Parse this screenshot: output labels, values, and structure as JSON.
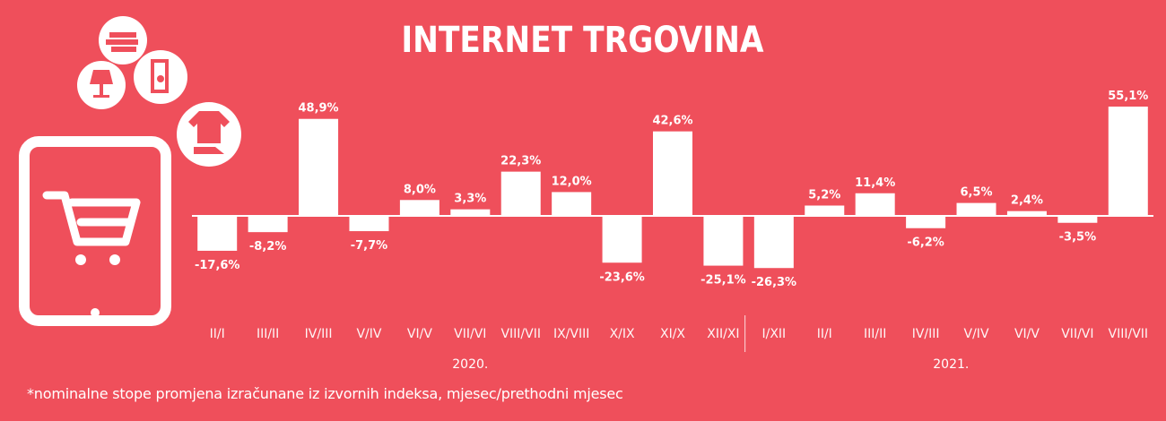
{
  "title": "INTERNET TRGOVINA",
  "footnote": "*nominalne stope promjena izračunane iz izvornih indeksa, mjesec/prethodni mjesec",
  "colors": {
    "background": "#ef4f5b",
    "bars": "#ffffff",
    "text": "#ffffff"
  },
  "icons": [
    "tablet-icon",
    "shopping-cart-icon",
    "books-icon",
    "lamp-icon",
    "fridge-icon",
    "clothing-icon"
  ],
  "chart_data": {
    "type": "bar",
    "title": "INTERNET TRGOVINA",
    "categories": [
      "II/I",
      "III/II",
      "IV/III",
      "V/IV",
      "VI/V",
      "VII/VI",
      "VIII/VII",
      "IX/VIII",
      "X/IX",
      "XI/X",
      "XII/XI",
      "I/XII",
      "II/I",
      "III/II",
      "IV/III",
      "V/IV",
      "VI/V",
      "VII/VI",
      "VIII/VII"
    ],
    "values": [
      -17.6,
      -8.2,
      48.9,
      -7.7,
      8.0,
      3.3,
      22.3,
      12.0,
      -23.6,
      42.6,
      -25.1,
      -26.3,
      5.2,
      11.4,
      -6.2,
      6.5,
      2.4,
      -3.5,
      55.1
    ],
    "value_labels": [
      "-17,6%",
      "-8,2%",
      "48,9%",
      "-7,7%",
      "8,0%",
      "3,3%",
      "22,3%",
      "12,0%",
      "-23,6%",
      "42,6%",
      "-25,1%",
      "-26,3%",
      "5,2%",
      "11,4%",
      "-6,2%",
      "6,5%",
      "2,4%",
      "-3,5%",
      "55,1%"
    ],
    "year_groups": [
      {
        "label": "2020.",
        "start": 0,
        "end": 10
      },
      {
        "label": "2021.",
        "start": 11,
        "end": 18
      }
    ],
    "ylim": [
      -30,
      56
    ],
    "grid": false,
    "xlabel": "",
    "ylabel": ""
  }
}
